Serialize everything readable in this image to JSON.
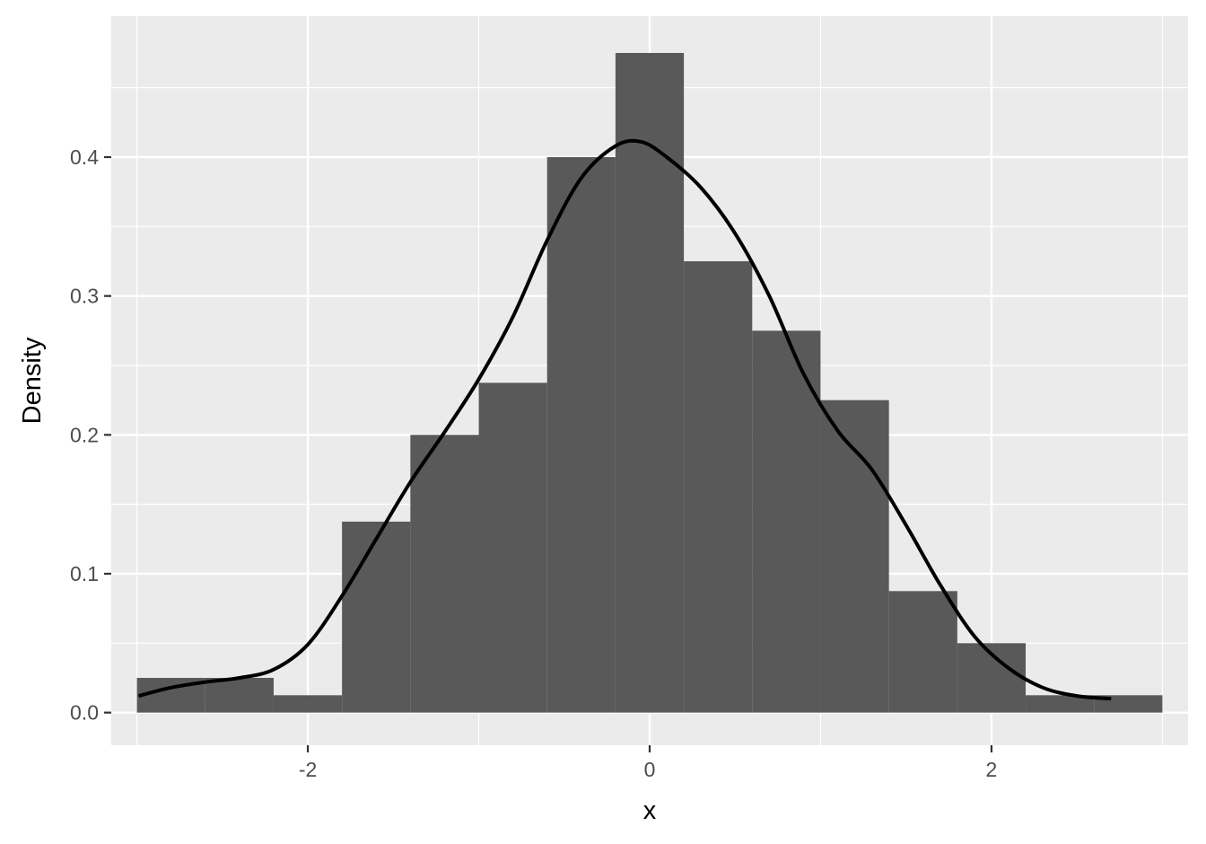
{
  "chart_data": {
    "type": "bar",
    "subtype": "histogram-with-density",
    "xlabel": "x",
    "ylabel": "Density",
    "xlim": [
      -3.15,
      3.15
    ],
    "ylim": [
      -0.0235,
      0.5015
    ],
    "x_ticks": [
      -2,
      0,
      2
    ],
    "x_minor_ticks": [
      -3,
      -1,
      1,
      3
    ],
    "y_ticks": [
      0.0,
      0.1,
      0.2,
      0.3,
      0.4
    ],
    "y_tick_labels": [
      "0.0",
      "0.1",
      "0.2",
      "0.3",
      "0.4"
    ],
    "y_minor_ticks": [
      0.05,
      0.15,
      0.25,
      0.35,
      0.45
    ],
    "grid": true,
    "legend": "none",
    "bins": [
      {
        "x0": -3.0,
        "x1": -2.6,
        "density": 0.025
      },
      {
        "x0": -2.6,
        "x1": -2.2,
        "density": 0.025
      },
      {
        "x0": -2.2,
        "x1": -1.8,
        "density": 0.0125
      },
      {
        "x0": -1.8,
        "x1": -1.4,
        "density": 0.1375
      },
      {
        "x0": -1.4,
        "x1": -1.0,
        "density": 0.2
      },
      {
        "x0": -1.0,
        "x1": -0.6,
        "density": 0.2375
      },
      {
        "x0": -0.6,
        "x1": -0.2,
        "density": 0.4
      },
      {
        "x0": -0.2,
        "x1": 0.2,
        "density": 0.475
      },
      {
        "x0": 0.2,
        "x1": 0.6,
        "density": 0.325
      },
      {
        "x0": 0.6,
        "x1": 1.0,
        "density": 0.275
      },
      {
        "x0": 1.0,
        "x1": 1.4,
        "density": 0.225
      },
      {
        "x0": 1.4,
        "x1": 1.8,
        "density": 0.0875
      },
      {
        "x0": 1.8,
        "x1": 2.2,
        "density": 0.05
      },
      {
        "x0": 2.2,
        "x1": 2.6,
        "density": 0.0125
      },
      {
        "x0": 2.6,
        "x1": 3.0,
        "density": 0.0125
      }
    ],
    "density_curve": {
      "x": [
        -2.99,
        -2.8,
        -2.6,
        -2.4,
        -2.2,
        -2.0,
        -1.8,
        -1.6,
        -1.4,
        -1.2,
        -1.0,
        -0.8,
        -0.6,
        -0.4,
        -0.2,
        -0.05,
        0.1,
        0.3,
        0.5,
        0.7,
        0.9,
        1.1,
        1.3,
        1.5,
        1.7,
        1.9,
        2.1,
        2.3,
        2.5,
        2.7
      ],
      "y": [
        0.012,
        0.018,
        0.022,
        0.025,
        0.031,
        0.049,
        0.084,
        0.125,
        0.166,
        0.202,
        0.24,
        0.285,
        0.34,
        0.385,
        0.408,
        0.411,
        0.4,
        0.378,
        0.345,
        0.3,
        0.244,
        0.203,
        0.175,
        0.135,
        0.092,
        0.055,
        0.032,
        0.018,
        0.012,
        0.01
      ]
    }
  }
}
